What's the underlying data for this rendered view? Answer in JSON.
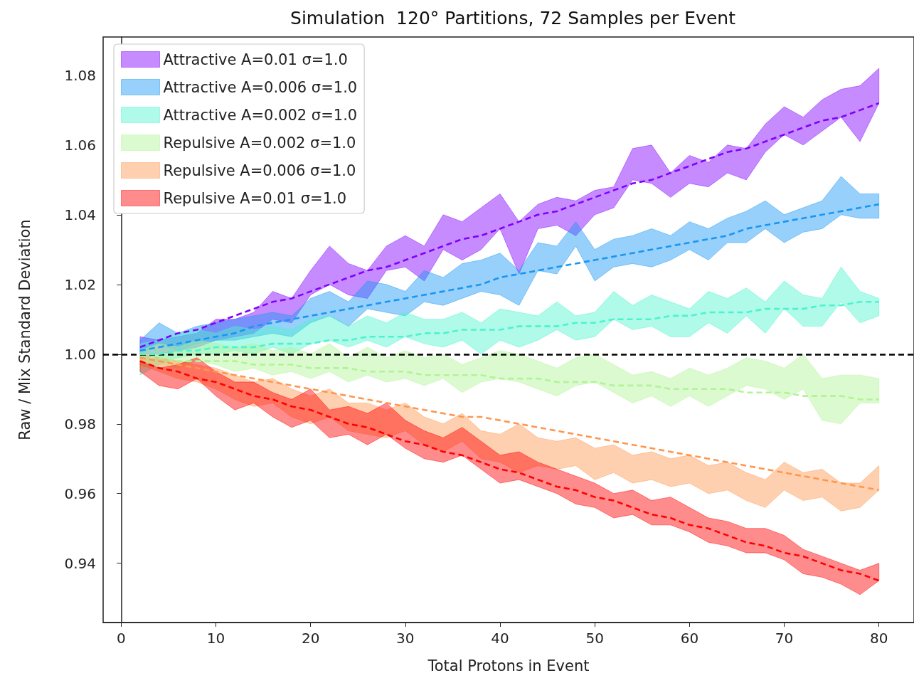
{
  "chart_data": {
    "type": "line",
    "title": "Simulation  120° Partitions, 72 Samples per Event",
    "xlabel": "Total Protons in Event",
    "ylabel": "Raw / Mix Standard Deviation",
    "xlim": [
      -1.9,
      83.7
    ],
    "xticks": [
      0,
      10,
      20,
      30,
      40,
      50,
      60,
      70,
      80
    ],
    "ylim": [
      0.923,
      1.091
    ],
    "yticks": [
      0.94,
      0.96,
      0.98,
      {
        "value": 1.0,
        "label": "1.00"
      },
      1.02,
      1.04,
      1.06,
      1.08
    ],
    "grid": false,
    "legend": "top left",
    "line_style": "dashed",
    "x": [
      2,
      4,
      6,
      8,
      10,
      12,
      14,
      16,
      18,
      20,
      22,
      24,
      26,
      28,
      30,
      32,
      34,
      36,
      38,
      40,
      42,
      44,
      46,
      48,
      50,
      52,
      54,
      56,
      58,
      60,
      62,
      64,
      66,
      68,
      70,
      72,
      74,
      76,
      78,
      80
    ],
    "ref_lines": [
      {
        "axis": "y",
        "value": 1.0,
        "color": "#000000",
        "line_style": "dashed"
      }
    ],
    "series": [
      {
        "name": "Attractive A=0.01 σ=1.0",
        "color": "#8000ff",
        "values": [
          1.002,
          1.004,
          1.006,
          1.007,
          1.009,
          1.011,
          1.013,
          1.015,
          1.016,
          1.018,
          1.02,
          1.022,
          1.024,
          1.025,
          1.027,
          1.029,
          1.031,
          1.033,
          1.034,
          1.036,
          1.038,
          1.04,
          1.041,
          1.043,
          1.045,
          1.047,
          1.049,
          1.05,
          1.052,
          1.054,
          1.056,
          1.058,
          1.059,
          1.061,
          1.063,
          1.065,
          1.067,
          1.068,
          1.07,
          1.072
        ],
        "upper": [
          1.005,
          1.004,
          1.005,
          1.006,
          1.01,
          1.01,
          1.012,
          1.018,
          1.016,
          1.024,
          1.031,
          1.026,
          1.024,
          1.031,
          1.034,
          1.031,
          1.04,
          1.038,
          1.042,
          1.046,
          1.038,
          1.043,
          1.045,
          1.044,
          1.047,
          1.048,
          1.059,
          1.06,
          1.052,
          1.057,
          1.055,
          1.06,
          1.059,
          1.066,
          1.071,
          1.068,
          1.073,
          1.076,
          1.077,
          1.082
        ],
        "lower": [
          1.0,
          1.0,
          1.001,
          1.002,
          1.004,
          1.005,
          1.006,
          1.01,
          1.009,
          1.017,
          1.02,
          1.017,
          1.016,
          1.024,
          1.025,
          1.021,
          1.03,
          1.027,
          1.03,
          1.036,
          1.023,
          1.036,
          1.037,
          1.034,
          1.04,
          1.042,
          1.05,
          1.049,
          1.045,
          1.049,
          1.048,
          1.052,
          1.05,
          1.058,
          1.063,
          1.06,
          1.064,
          1.068,
          1.061,
          1.072
        ]
      },
      {
        "name": "Attractive A=0.006 σ=1.0",
        "color": "#1996f3",
        "values": [
          1.001,
          1.002,
          1.003,
          1.004,
          1.005,
          1.006,
          1.008,
          1.009,
          1.01,
          1.011,
          1.012,
          1.013,
          1.014,
          1.015,
          1.016,
          1.017,
          1.018,
          1.019,
          1.02,
          1.022,
          1.023,
          1.024,
          1.025,
          1.026,
          1.027,
          1.028,
          1.029,
          1.03,
          1.031,
          1.032,
          1.033,
          1.034,
          1.036,
          1.037,
          1.038,
          1.039,
          1.04,
          1.041,
          1.042,
          1.043
        ],
        "upper": [
          1.004,
          1.009,
          1.006,
          1.008,
          1.009,
          1.01,
          1.011,
          1.012,
          1.011,
          1.016,
          1.018,
          1.015,
          1.021,
          1.02,
          1.018,
          1.024,
          1.022,
          1.026,
          1.027,
          1.029,
          1.024,
          1.032,
          1.031,
          1.038,
          1.03,
          1.033,
          1.034,
          1.036,
          1.034,
          1.038,
          1.036,
          1.039,
          1.041,
          1.044,
          1.04,
          1.042,
          1.044,
          1.051,
          1.046,
          1.046
        ],
        "lower": [
          1.0,
          1.003,
          1.001,
          1.003,
          1.004,
          1.004,
          1.005,
          1.006,
          1.005,
          1.009,
          1.011,
          1.008,
          1.013,
          1.012,
          1.011,
          1.015,
          1.014,
          1.016,
          1.018,
          1.017,
          1.014,
          1.024,
          1.023,
          1.031,
          1.021,
          1.025,
          1.026,
          1.025,
          1.027,
          1.03,
          1.027,
          1.032,
          1.032,
          1.036,
          1.032,
          1.035,
          1.036,
          1.04,
          1.039,
          1.039
        ]
      },
      {
        "name": "Attractive A=0.002 σ=1.0",
        "color": "#4df3ce",
        "values": [
          1.0,
          1.0,
          1.001,
          1.001,
          1.002,
          1.002,
          1.002,
          1.003,
          1.003,
          1.003,
          1.004,
          1.004,
          1.005,
          1.005,
          1.005,
          1.006,
          1.006,
          1.007,
          1.007,
          1.007,
          1.008,
          1.008,
          1.008,
          1.009,
          1.009,
          1.01,
          1.01,
          1.01,
          1.011,
          1.011,
          1.012,
          1.012,
          1.012,
          1.013,
          1.013,
          1.013,
          1.014,
          1.014,
          1.015,
          1.015
        ],
        "upper": [
          1.003,
          1.004,
          1.006,
          1.007,
          1.006,
          1.008,
          1.007,
          1.008,
          1.007,
          1.01,
          1.011,
          1.008,
          1.011,
          1.009,
          1.012,
          1.01,
          1.01,
          1.012,
          1.009,
          1.013,
          1.012,
          1.011,
          1.015,
          1.011,
          1.012,
          1.018,
          1.014,
          1.017,
          1.015,
          1.013,
          1.018,
          1.016,
          1.019,
          1.015,
          1.021,
          1.017,
          1.016,
          1.025,
          1.018,
          1.016
        ],
        "lower": [
          0.994,
          0.997,
          0.999,
          1.0,
          1.0,
          1.001,
          1.0,
          1.002,
          1.0,
          1.003,
          1.004,
          1.002,
          1.004,
          1.002,
          1.005,
          1.003,
          1.002,
          1.004,
          1.0,
          1.004,
          1.002,
          1.004,
          1.007,
          1.004,
          1.005,
          1.01,
          1.007,
          1.008,
          1.005,
          1.005,
          1.009,
          1.006,
          1.011,
          1.006,
          1.013,
          1.008,
          1.008,
          1.015,
          1.009,
          1.011
        ]
      },
      {
        "name": "Repulsive A=0.002 σ=1.0",
        "color": "#b2f396",
        "values": [
          0.999,
          0.999,
          0.998,
          0.998,
          0.998,
          0.998,
          0.997,
          0.997,
          0.997,
          0.996,
          0.996,
          0.996,
          0.995,
          0.995,
          0.995,
          0.994,
          0.994,
          0.994,
          0.994,
          0.993,
          0.993,
          0.993,
          0.992,
          0.992,
          0.992,
          0.991,
          0.991,
          0.991,
          0.99,
          0.99,
          0.99,
          0.99,
          0.989,
          0.989,
          0.989,
          0.988,
          0.988,
          0.988,
          0.987,
          0.987
        ],
        "upper": [
          1.001,
          1.003,
          1.002,
          1.004,
          1.003,
          1.002,
          1.003,
          1.001,
          1.002,
          1.0,
          1.003,
          0.999,
          1.002,
          0.999,
          1.001,
          0.999,
          1.0,
          0.997,
          0.999,
          1.001,
          1.0,
          0.998,
          0.996,
          0.999,
          1.0,
          0.997,
          0.994,
          0.995,
          0.993,
          0.996,
          0.994,
          0.996,
          0.999,
          0.998,
          0.996,
          1.0,
          0.993,
          0.994,
          0.994,
          0.993
        ],
        "lower": [
          0.996,
          0.997,
          0.996,
          0.998,
          0.997,
          0.995,
          0.996,
          0.994,
          0.995,
          0.993,
          0.995,
          0.992,
          0.994,
          0.992,
          0.993,
          0.991,
          0.993,
          0.989,
          0.992,
          0.993,
          0.992,
          0.99,
          0.988,
          0.991,
          0.992,
          0.989,
          0.986,
          0.988,
          0.985,
          0.988,
          0.985,
          0.988,
          0.991,
          0.99,
          0.987,
          0.99,
          0.981,
          0.98,
          0.986,
          0.986
        ]
      },
      {
        "name": "Repulsive A=0.006 σ=1.0",
        "color": "#ff964f",
        "values": [
          0.999,
          0.998,
          0.997,
          0.996,
          0.995,
          0.994,
          0.993,
          0.992,
          0.991,
          0.99,
          0.989,
          0.988,
          0.987,
          0.986,
          0.985,
          0.984,
          0.983,
          0.982,
          0.982,
          0.981,
          0.98,
          0.979,
          0.978,
          0.977,
          0.976,
          0.975,
          0.974,
          0.973,
          0.972,
          0.971,
          0.97,
          0.969,
          0.968,
          0.967,
          0.966,
          0.965,
          0.964,
          0.963,
          0.962,
          0.961
        ],
        "upper": [
          1.0,
          0.999,
          0.998,
          0.997,
          0.996,
          0.994,
          0.992,
          0.993,
          0.99,
          0.988,
          0.99,
          0.986,
          0.986,
          0.984,
          0.986,
          0.982,
          0.98,
          0.983,
          0.978,
          0.977,
          0.98,
          0.976,
          0.975,
          0.976,
          0.973,
          0.974,
          0.971,
          0.972,
          0.97,
          0.971,
          0.968,
          0.969,
          0.966,
          0.964,
          0.969,
          0.966,
          0.967,
          0.963,
          0.963,
          0.968
        ],
        "lower": [
          0.997,
          0.995,
          0.993,
          0.992,
          0.99,
          0.987,
          0.985,
          0.986,
          0.982,
          0.98,
          0.982,
          0.978,
          0.977,
          0.976,
          0.978,
          0.974,
          0.972,
          0.975,
          0.97,
          0.969,
          0.966,
          0.968,
          0.967,
          0.968,
          0.964,
          0.966,
          0.963,
          0.964,
          0.962,
          0.963,
          0.96,
          0.961,
          0.958,
          0.956,
          0.961,
          0.958,
          0.959,
          0.955,
          0.956,
          0.961
        ]
      },
      {
        "name": "Repulsive A=0.01 σ=1.0",
        "color": "#ff0000",
        "values": [
          0.998,
          0.996,
          0.995,
          0.993,
          0.992,
          0.99,
          0.988,
          0.987,
          0.985,
          0.984,
          0.982,
          0.98,
          0.979,
          0.977,
          0.975,
          0.974,
          0.972,
          0.971,
          0.969,
          0.967,
          0.966,
          0.964,
          0.962,
          0.961,
          0.959,
          0.958,
          0.956,
          0.954,
          0.953,
          0.951,
          0.95,
          0.948,
          0.946,
          0.945,
          0.943,
          0.942,
          0.94,
          0.938,
          0.937,
          0.935
        ],
        "upper": [
          0.998,
          0.996,
          0.997,
          0.999,
          0.995,
          0.992,
          0.992,
          0.989,
          0.987,
          0.99,
          0.984,
          0.985,
          0.983,
          0.986,
          0.981,
          0.978,
          0.976,
          0.979,
          0.975,
          0.971,
          0.972,
          0.969,
          0.967,
          0.965,
          0.963,
          0.96,
          0.961,
          0.958,
          0.959,
          0.956,
          0.953,
          0.952,
          0.95,
          0.95,
          0.948,
          0.944,
          0.942,
          0.94,
          0.938,
          0.94
        ],
        "lower": [
          0.995,
          0.991,
          0.99,
          0.993,
          0.988,
          0.984,
          0.986,
          0.982,
          0.979,
          0.981,
          0.976,
          0.977,
          0.974,
          0.977,
          0.973,
          0.97,
          0.969,
          0.971,
          0.967,
          0.963,
          0.964,
          0.962,
          0.96,
          0.957,
          0.956,
          0.953,
          0.954,
          0.951,
          0.951,
          0.949,
          0.946,
          0.945,
          0.943,
          0.943,
          0.941,
          0.937,
          0.936,
          0.934,
          0.931,
          0.935
        ]
      }
    ]
  }
}
